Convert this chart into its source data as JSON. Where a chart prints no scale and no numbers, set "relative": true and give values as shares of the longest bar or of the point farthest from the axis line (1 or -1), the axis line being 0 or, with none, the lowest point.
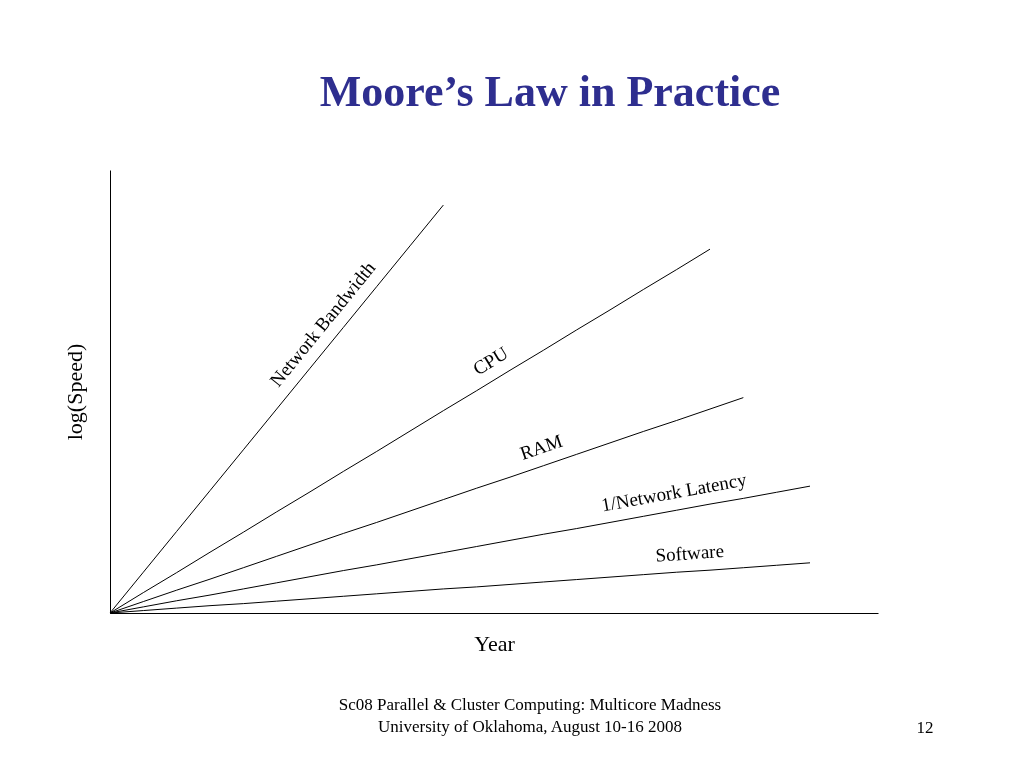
{
  "chart_data": {
    "type": "line",
    "title": "Moore’s Law in Practice",
    "xlabel": "Year",
    "ylabel": "log(Speed)",
    "relative": true,
    "grid": false,
    "legend": false,
    "marker": "none",
    "line_style": "solid",
    "categories": [
      null,
      null,
      null,
      null,
      null,
      null,
      null,
      null,
      null,
      null,
      null,
      null,
      null,
      null,
      null,
      null,
      null,
      null,
      null,
      null,
      null,
      null
    ],
    "series": [
      {
        "name": "Network Bandwidth",
        "color": "#000000",
        "values": [
          0,
          0.1,
          0.2,
          0.3,
          0.4,
          0.5,
          0.6,
          0.7,
          0.8,
          0.9,
          1,
          null,
          null,
          null,
          null,
          null,
          null,
          null,
          null,
          null,
          null,
          null
        ]
      },
      {
        "name": "CPU",
        "color": "#000000",
        "values": [
          0,
          0.05,
          0.099,
          0.149,
          0.198,
          0.248,
          0.297,
          0.347,
          0.396,
          0.446,
          0.496,
          0.545,
          0.595,
          0.644,
          0.694,
          0.743,
          0.793,
          0.842,
          0.892,
          null,
          null,
          null
        ]
      },
      {
        "name": "RAM",
        "color": "#000000",
        "values": [
          0,
          0.028,
          0.056,
          0.083,
          0.111,
          0.139,
          0.167,
          0.195,
          0.222,
          0.25,
          0.278,
          0.306,
          0.333,
          0.361,
          0.389,
          0.417,
          0.445,
          0.472,
          0.5,
          0.528,
          null,
          null
        ]
      },
      {
        "name": "1/Network Latency",
        "color": "#000000",
        "values": [
          0,
          0.015,
          0.03,
          0.044,
          0.059,
          0.074,
          0.089,
          0.104,
          0.118,
          0.133,
          0.148,
          0.163,
          0.178,
          0.193,
          0.207,
          0.222,
          0.237,
          0.252,
          0.267,
          0.281,
          0.296,
          0.311
        ]
      },
      {
        "name": "Software",
        "color": "#000000",
        "values": [
          0,
          0.006,
          0.012,
          0.018,
          0.023,
          0.029,
          0.035,
          0.041,
          0.047,
          0.053,
          0.059,
          0.064,
          0.07,
          0.076,
          0.082,
          0.088,
          0.094,
          0.1,
          0.105,
          0.111,
          0.117,
          0.123
        ]
      }
    ],
    "annotations": [
      "Sc08 Parallel & Cluster Computing: Multicore Madness",
      "University of Oklahoma, August 10-16 2008",
      "12"
    ]
  }
}
